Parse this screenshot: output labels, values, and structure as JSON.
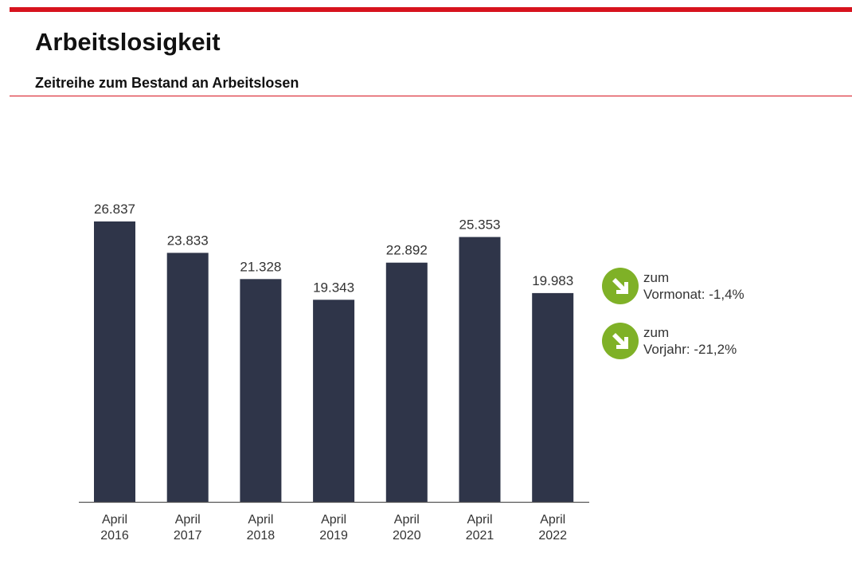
{
  "header": {
    "title": "Arbeitslosigkeit",
    "subtitle": "Zeitreihe zum Bestand an Arbeitslosen"
  },
  "colors": {
    "brand_red": "#d7131e",
    "bar": "#2f3549",
    "indicator_green": "#7fb127"
  },
  "indicators": [
    {
      "icon": "arrow-down-right-icon",
      "label": "zum",
      "detail_label": "Vormonat:",
      "value": "-1,4%"
    },
    {
      "icon": "arrow-down-right-icon",
      "label": "zum",
      "detail_label": "Vorjahr:",
      "value": "-21,2%"
    }
  ],
  "chart_data": {
    "type": "bar",
    "categories": [
      [
        "April",
        "2016"
      ],
      [
        "April",
        "2017"
      ],
      [
        "April",
        "2018"
      ],
      [
        "April",
        "2019"
      ],
      [
        "April",
        "2020"
      ],
      [
        "April",
        "2021"
      ],
      [
        "April",
        "2022"
      ]
    ],
    "values": [
      26837,
      23833,
      21328,
      19343,
      22892,
      25353,
      19983
    ],
    "value_labels": [
      "26.837",
      "23.833",
      "21.328",
      "19.343",
      "22.892",
      "25.353",
      "19.983"
    ],
    "ylim": [
      0,
      26837
    ],
    "grid": false,
    "legend": "none"
  }
}
